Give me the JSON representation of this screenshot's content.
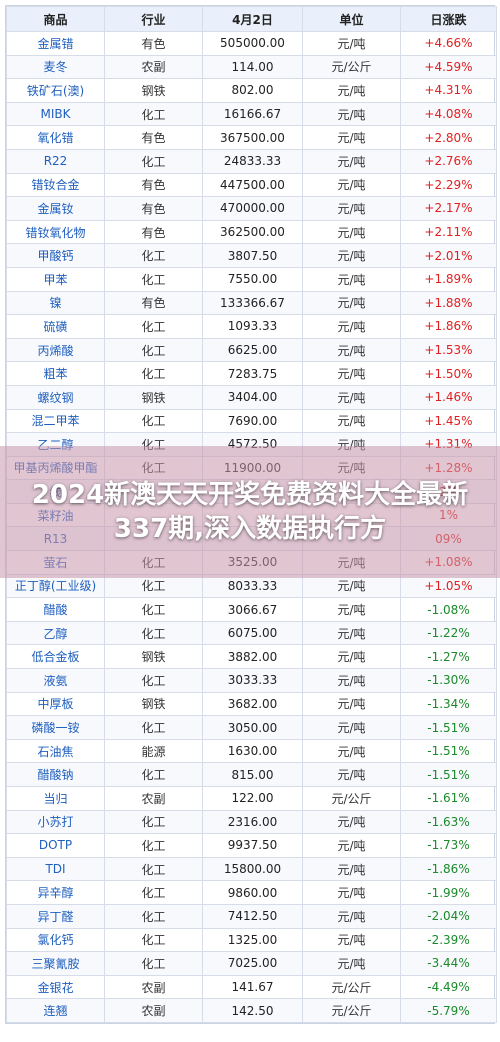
{
  "headers": [
    "商品",
    "行业",
    "4月2日",
    "单位",
    "日涨跌"
  ],
  "rows": [
    {
      "name": "金属错",
      "cat": "有色",
      "price": "505000.00",
      "unit": "元/吨",
      "chg": "+4.66%",
      "dir": "up"
    },
    {
      "name": "麦冬",
      "cat": "农副",
      "price": "114.00",
      "unit": "元/公斤",
      "chg": "+4.59%",
      "dir": "up"
    },
    {
      "name": "铁矿石(澳)",
      "cat": "钢铁",
      "price": "802.00",
      "unit": "元/吨",
      "chg": "+4.31%",
      "dir": "up"
    },
    {
      "name": "MIBK",
      "cat": "化工",
      "price": "16166.67",
      "unit": "元/吨",
      "chg": "+4.08%",
      "dir": "up"
    },
    {
      "name": "氧化错",
      "cat": "有色",
      "price": "367500.00",
      "unit": "元/吨",
      "chg": "+2.80%",
      "dir": "up"
    },
    {
      "name": "R22",
      "cat": "化工",
      "price": "24833.33",
      "unit": "元/吨",
      "chg": "+2.76%",
      "dir": "up"
    },
    {
      "name": "错钕合金",
      "cat": "有色",
      "price": "447500.00",
      "unit": "元/吨",
      "chg": "+2.29%",
      "dir": "up"
    },
    {
      "name": "金属钕",
      "cat": "有色",
      "price": "470000.00",
      "unit": "元/吨",
      "chg": "+2.17%",
      "dir": "up"
    },
    {
      "name": "错钕氧化物",
      "cat": "有色",
      "price": "362500.00",
      "unit": "元/吨",
      "chg": "+2.11%",
      "dir": "up"
    },
    {
      "name": "甲酸钙",
      "cat": "化工",
      "price": "3807.50",
      "unit": "元/吨",
      "chg": "+2.01%",
      "dir": "up"
    },
    {
      "name": "甲苯",
      "cat": "化工",
      "price": "7550.00",
      "unit": "元/吨",
      "chg": "+1.89%",
      "dir": "up"
    },
    {
      "name": "镍",
      "cat": "有色",
      "price": "133366.67",
      "unit": "元/吨",
      "chg": "+1.88%",
      "dir": "up"
    },
    {
      "name": "硫磺",
      "cat": "化工",
      "price": "1093.33",
      "unit": "元/吨",
      "chg": "+1.86%",
      "dir": "up"
    },
    {
      "name": "丙烯酸",
      "cat": "化工",
      "price": "6625.00",
      "unit": "元/吨",
      "chg": "+1.53%",
      "dir": "up"
    },
    {
      "name": "粗苯",
      "cat": "化工",
      "price": "7283.75",
      "unit": "元/吨",
      "chg": "+1.50%",
      "dir": "up"
    },
    {
      "name": "螺纹钢",
      "cat": "钢铁",
      "price": "3404.00",
      "unit": "元/吨",
      "chg": "+1.46%",
      "dir": "up"
    },
    {
      "name": "混二甲苯",
      "cat": "化工",
      "price": "7690.00",
      "unit": "元/吨",
      "chg": "+1.45%",
      "dir": "up"
    },
    {
      "name": "乙二醇",
      "cat": "化工",
      "price": "4572.50",
      "unit": "元/吨",
      "chg": "+1.31%",
      "dir": "up"
    },
    {
      "name": "甲基丙烯酸甲酯",
      "cat": "化工",
      "price": "11900.00",
      "unit": "元/吨",
      "chg": "+1.28%",
      "dir": "up"
    },
    {
      "name": "线",
      "cat": "",
      "price": "",
      "unit": "",
      "chg": "2%",
      "dir": "up"
    },
    {
      "name": "菜籽油",
      "cat": "",
      "price": "",
      "unit": "",
      "chg": "1%",
      "dir": "up"
    },
    {
      "name": "R13",
      "cat": "",
      "price": "",
      "unit": "",
      "chg": "09%",
      "dir": "up"
    },
    {
      "name": "萤石",
      "cat": "化工",
      "price": "3525.00",
      "unit": "元/吨",
      "chg": "+1.08%",
      "dir": "up"
    },
    {
      "name": "正丁醇(工业级)",
      "cat": "化工",
      "price": "8033.33",
      "unit": "元/吨",
      "chg": "+1.05%",
      "dir": "up"
    },
    {
      "name": "醋酸",
      "cat": "化工",
      "price": "3066.67",
      "unit": "元/吨",
      "chg": "-1.08%",
      "dir": "down"
    },
    {
      "name": "乙醇",
      "cat": "化工",
      "price": "6075.00",
      "unit": "元/吨",
      "chg": "-1.22%",
      "dir": "down"
    },
    {
      "name": "低合金板",
      "cat": "钢铁",
      "price": "3882.00",
      "unit": "元/吨",
      "chg": "-1.27%",
      "dir": "down"
    },
    {
      "name": "液氨",
      "cat": "化工",
      "price": "3033.33",
      "unit": "元/吨",
      "chg": "-1.30%",
      "dir": "down"
    },
    {
      "name": "中厚板",
      "cat": "钢铁",
      "price": "3682.00",
      "unit": "元/吨",
      "chg": "-1.34%",
      "dir": "down"
    },
    {
      "name": "磷酸一铵",
      "cat": "化工",
      "price": "3050.00",
      "unit": "元/吨",
      "chg": "-1.51%",
      "dir": "down"
    },
    {
      "name": "石油焦",
      "cat": "能源",
      "price": "1630.00",
      "unit": "元/吨",
      "chg": "-1.51%",
      "dir": "down"
    },
    {
      "name": "醋酸钠",
      "cat": "化工",
      "price": "815.00",
      "unit": "元/吨",
      "chg": "-1.51%",
      "dir": "down"
    },
    {
      "name": "当归",
      "cat": "农副",
      "price": "122.00",
      "unit": "元/公斤",
      "chg": "-1.61%",
      "dir": "down"
    },
    {
      "name": "小苏打",
      "cat": "化工",
      "price": "2316.00",
      "unit": "元/吨",
      "chg": "-1.63%",
      "dir": "down"
    },
    {
      "name": "DOTP",
      "cat": "化工",
      "price": "9937.50",
      "unit": "元/吨",
      "chg": "-1.73%",
      "dir": "down"
    },
    {
      "name": "TDI",
      "cat": "化工",
      "price": "15800.00",
      "unit": "元/吨",
      "chg": "-1.86%",
      "dir": "down"
    },
    {
      "name": "异辛醇",
      "cat": "化工",
      "price": "9860.00",
      "unit": "元/吨",
      "chg": "-1.99%",
      "dir": "down"
    },
    {
      "name": "异丁醛",
      "cat": "化工",
      "price": "7412.50",
      "unit": "元/吨",
      "chg": "-2.04%",
      "dir": "down"
    },
    {
      "name": "氯化钙",
      "cat": "化工",
      "price": "1325.00",
      "unit": "元/吨",
      "chg": "-2.39%",
      "dir": "down"
    },
    {
      "name": "三聚氰胺",
      "cat": "化工",
      "price": "7025.00",
      "unit": "元/吨",
      "chg": "-3.44%",
      "dir": "down"
    },
    {
      "name": "金银花",
      "cat": "农副",
      "price": "141.67",
      "unit": "元/公斤",
      "chg": "-4.49%",
      "dir": "down"
    },
    {
      "name": "连翘",
      "cat": "农副",
      "price": "142.50",
      "unit": "元/公斤",
      "chg": "-5.79%",
      "dir": "down"
    }
  ],
  "overlay": {
    "title": "2024新澳天天开奖免费资料大全最新337期,深入数据执行方"
  }
}
